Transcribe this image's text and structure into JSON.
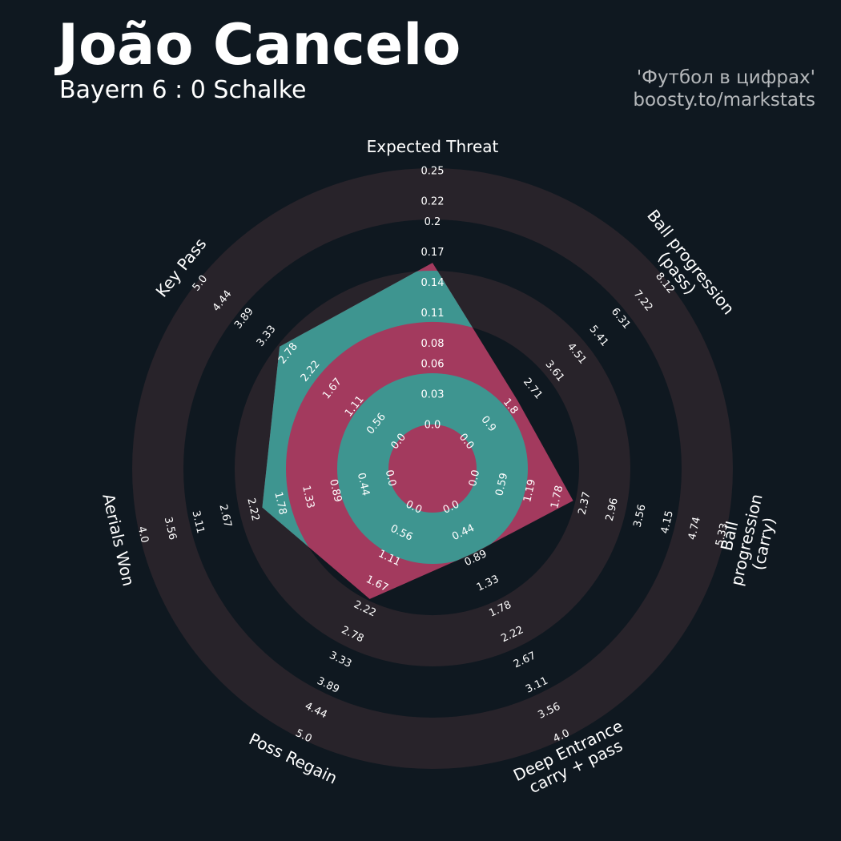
{
  "chart_data": {
    "type": "radar",
    "title": "João Cancelo",
    "subtitle": "Bayern 6 : 0 Schalke",
    "credits": [
      "'Футбол в цифрах'",
      "boosty.to/markstats"
    ],
    "categories": [
      "Expected Threat",
      "Ball progression (pass)",
      "Ball progression (carry)",
      "Deep Entrance\ncarry + pass",
      "Poss Regain",
      "Aerials Won",
      "Key Pass"
    ],
    "values": [
      0.16,
      2.1,
      2.12,
      0.8,
      2.0,
      2.07,
      3.0
    ],
    "ranges": [
      [
        0,
        0.25
      ],
      [
        0,
        8.12
      ],
      [
        0,
        5.33
      ],
      [
        0,
        4
      ],
      [
        0,
        5
      ],
      [
        0,
        4
      ],
      [
        0,
        5
      ]
    ],
    "ticks": [
      [
        {
          "value": 0,
          "label": "0.0"
        },
        0.03,
        0.06,
        0.08,
        0.11,
        0.14,
        0.17,
        0.2,
        0.22,
        0.25
      ],
      [
        {
          "value": 0,
          "label": "0.0"
        },
        0.9,
        1.8,
        2.71,
        3.61,
        4.51,
        5.41,
        6.31,
        7.22,
        8.12
      ],
      [
        {
          "value": 0,
          "label": "0.0"
        },
        0.59,
        1.19,
        1.78,
        2.37,
        2.96,
        3.56,
        4.15,
        4.74,
        5.33
      ],
      [
        {
          "value": 0,
          "label": "0.0"
        },
        0.44,
        0.89,
        1.33,
        1.78,
        2.22,
        2.67,
        3.11,
        3.56,
        {
          "value": 4,
          "label": "4.0"
        }
      ],
      [
        {
          "value": 0,
          "label": "0.0"
        },
        0.56,
        1.11,
        1.67,
        2.22,
        2.78,
        3.33,
        3.89,
        4.44,
        {
          "value": 5,
          "label": "5.0"
        }
      ],
      [
        {
          "value": 0,
          "label": "0.0"
        },
        0.44,
        0.89,
        1.33,
        1.78,
        2.22,
        2.67,
        3.11,
        3.56,
        {
          "value": 4,
          "label": "4.0"
        }
      ],
      [
        {
          "value": 0,
          "label": "0.0"
        },
        0.56,
        1.11,
        1.67,
        2.22,
        2.78,
        3.33,
        3.89,
        4.44,
        {
          "value": 5,
          "label": "5.0"
        }
      ]
    ],
    "colors": {
      "area": "#a33a5e",
      "area_alt": "#3e9590",
      "rings": "#28232a",
      "background": "#0f1820"
    }
  }
}
